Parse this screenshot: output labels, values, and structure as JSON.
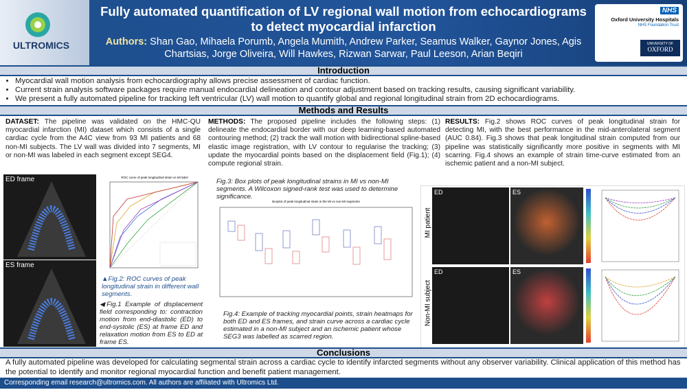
{
  "header": {
    "title": "Fully automated quantification of LV regional wall motion from echocardiograms to detect myocardial infarction",
    "authors_label": "Authors:",
    "authors": "Shan Gao, Mihaela Porumb, Angela Mumith, Andrew Parker, Seamus Walker, Gaynor Jones, Agis Chartsias, Jorge Oliveira, Will Hawkes, Rizwan Sarwar, Paul Leeson, Arian Beqiri",
    "logo_left": "ULTROMICS",
    "nhs": "NHS",
    "trust": "Oxford University Hospitals",
    "trust_sub": "NHS Foundation Trust",
    "university": "UNIVERSITY OF",
    "oxford": "OXFORD"
  },
  "introduction": {
    "heading": "Introduction",
    "bullets": [
      "Myocardial wall motion analysis from echocardiography allows precise assessment of cardiac function.",
      "Current strain analysis software packages require manual endocardial delineation and contour adjustment based on tracking results, causing significant variability.",
      "We present a fully automated pipeline for tracking left ventricular (LV) wall motion to quantify global and regional longitudinal strain from 2D echocardiograms."
    ]
  },
  "methods": {
    "heading": "Methods and Results",
    "dataset": {
      "label": "DATASET:",
      "text": "The pipeline was validated on the HMC-QU myocardial infarction (MI) dataset which consists of a single cardiac cycle from the A4C view from 93 MI patients and 68 non-MI subjects. The LV wall was divided into 7 segments, MI or non-MI was labeled in each segment except SEG4."
    },
    "methods": {
      "label": "METHODS:",
      "text": "The proposed pipeline includes the following steps: (1) delineate the endocardial border with our deep learning-based automated contouring method; (2) track the wall motion with bidirectional spline-based elastic image registration, with LV contour to regularise the tracking; (3) update the myocardial points based on the displacement field (Fig.1); (4) compute regional strain."
    },
    "results": {
      "label": "RESULTS:",
      "text": "Fig.2 shows ROC curves of peak longitudinal strain for detecting MI, with the best performance in the mid-anterolateral segment (AUC 0.84). Fig.3 shows that peak longitudinal strain computed from our pipeline was statistically significantly more positive in segments with MI scarring. Fig.4 shows an example of strain time-curve estimated from an ischemic patient and a non-MI subject."
    }
  },
  "figures": {
    "ed_frame": "ED frame",
    "es_frame": "ES frame",
    "fig2": "Fig.2: ROC curves of peak longitudinal strain in different wall segments.",
    "fig1": "Fig.1 Example of displacement field corresponding to: contraction motion from end-diastolic (ED) to end-systolic (ES) at frame ED and relaxation motion from ES to ED at frame ES.",
    "fig3": "Fig.3: Box plots of peak longitudinal strains in MI vs non-MI segments. A Wilcoxon signed-rank test was used to determine significance.",
    "boxplot_title": "Boxplot of peak longitudinal strain in the MI vs non-MI segments",
    "fig4": "Fig.4: Example of tracking myocardial points, strain heatmaps for both ED and ES frames, and strain curve across a cardiac cycle estimated in a non-MI subject and an ischemic patient whose SEG3 was labelled as scarred region.",
    "roc_title": "ROC curve of peak longitudinal strain vs MI label",
    "mi_patient": "MI patient",
    "non_mi_subject": "Non-MI subject",
    "ed": "ED",
    "es": "ES"
  },
  "conclusions": {
    "heading": "Conclusions",
    "text": "A fully automated pipeline was developed for calculating segmental strain across a cardiac cycle to identify infarcted segments without any observer variability. Clinical application of this method has the potential to identify and monitor regional myocardial function and benefit patient management."
  },
  "footer": "Corresponding email research@ultromics.com. All authors are affiliated with Ultromics Ltd."
}
